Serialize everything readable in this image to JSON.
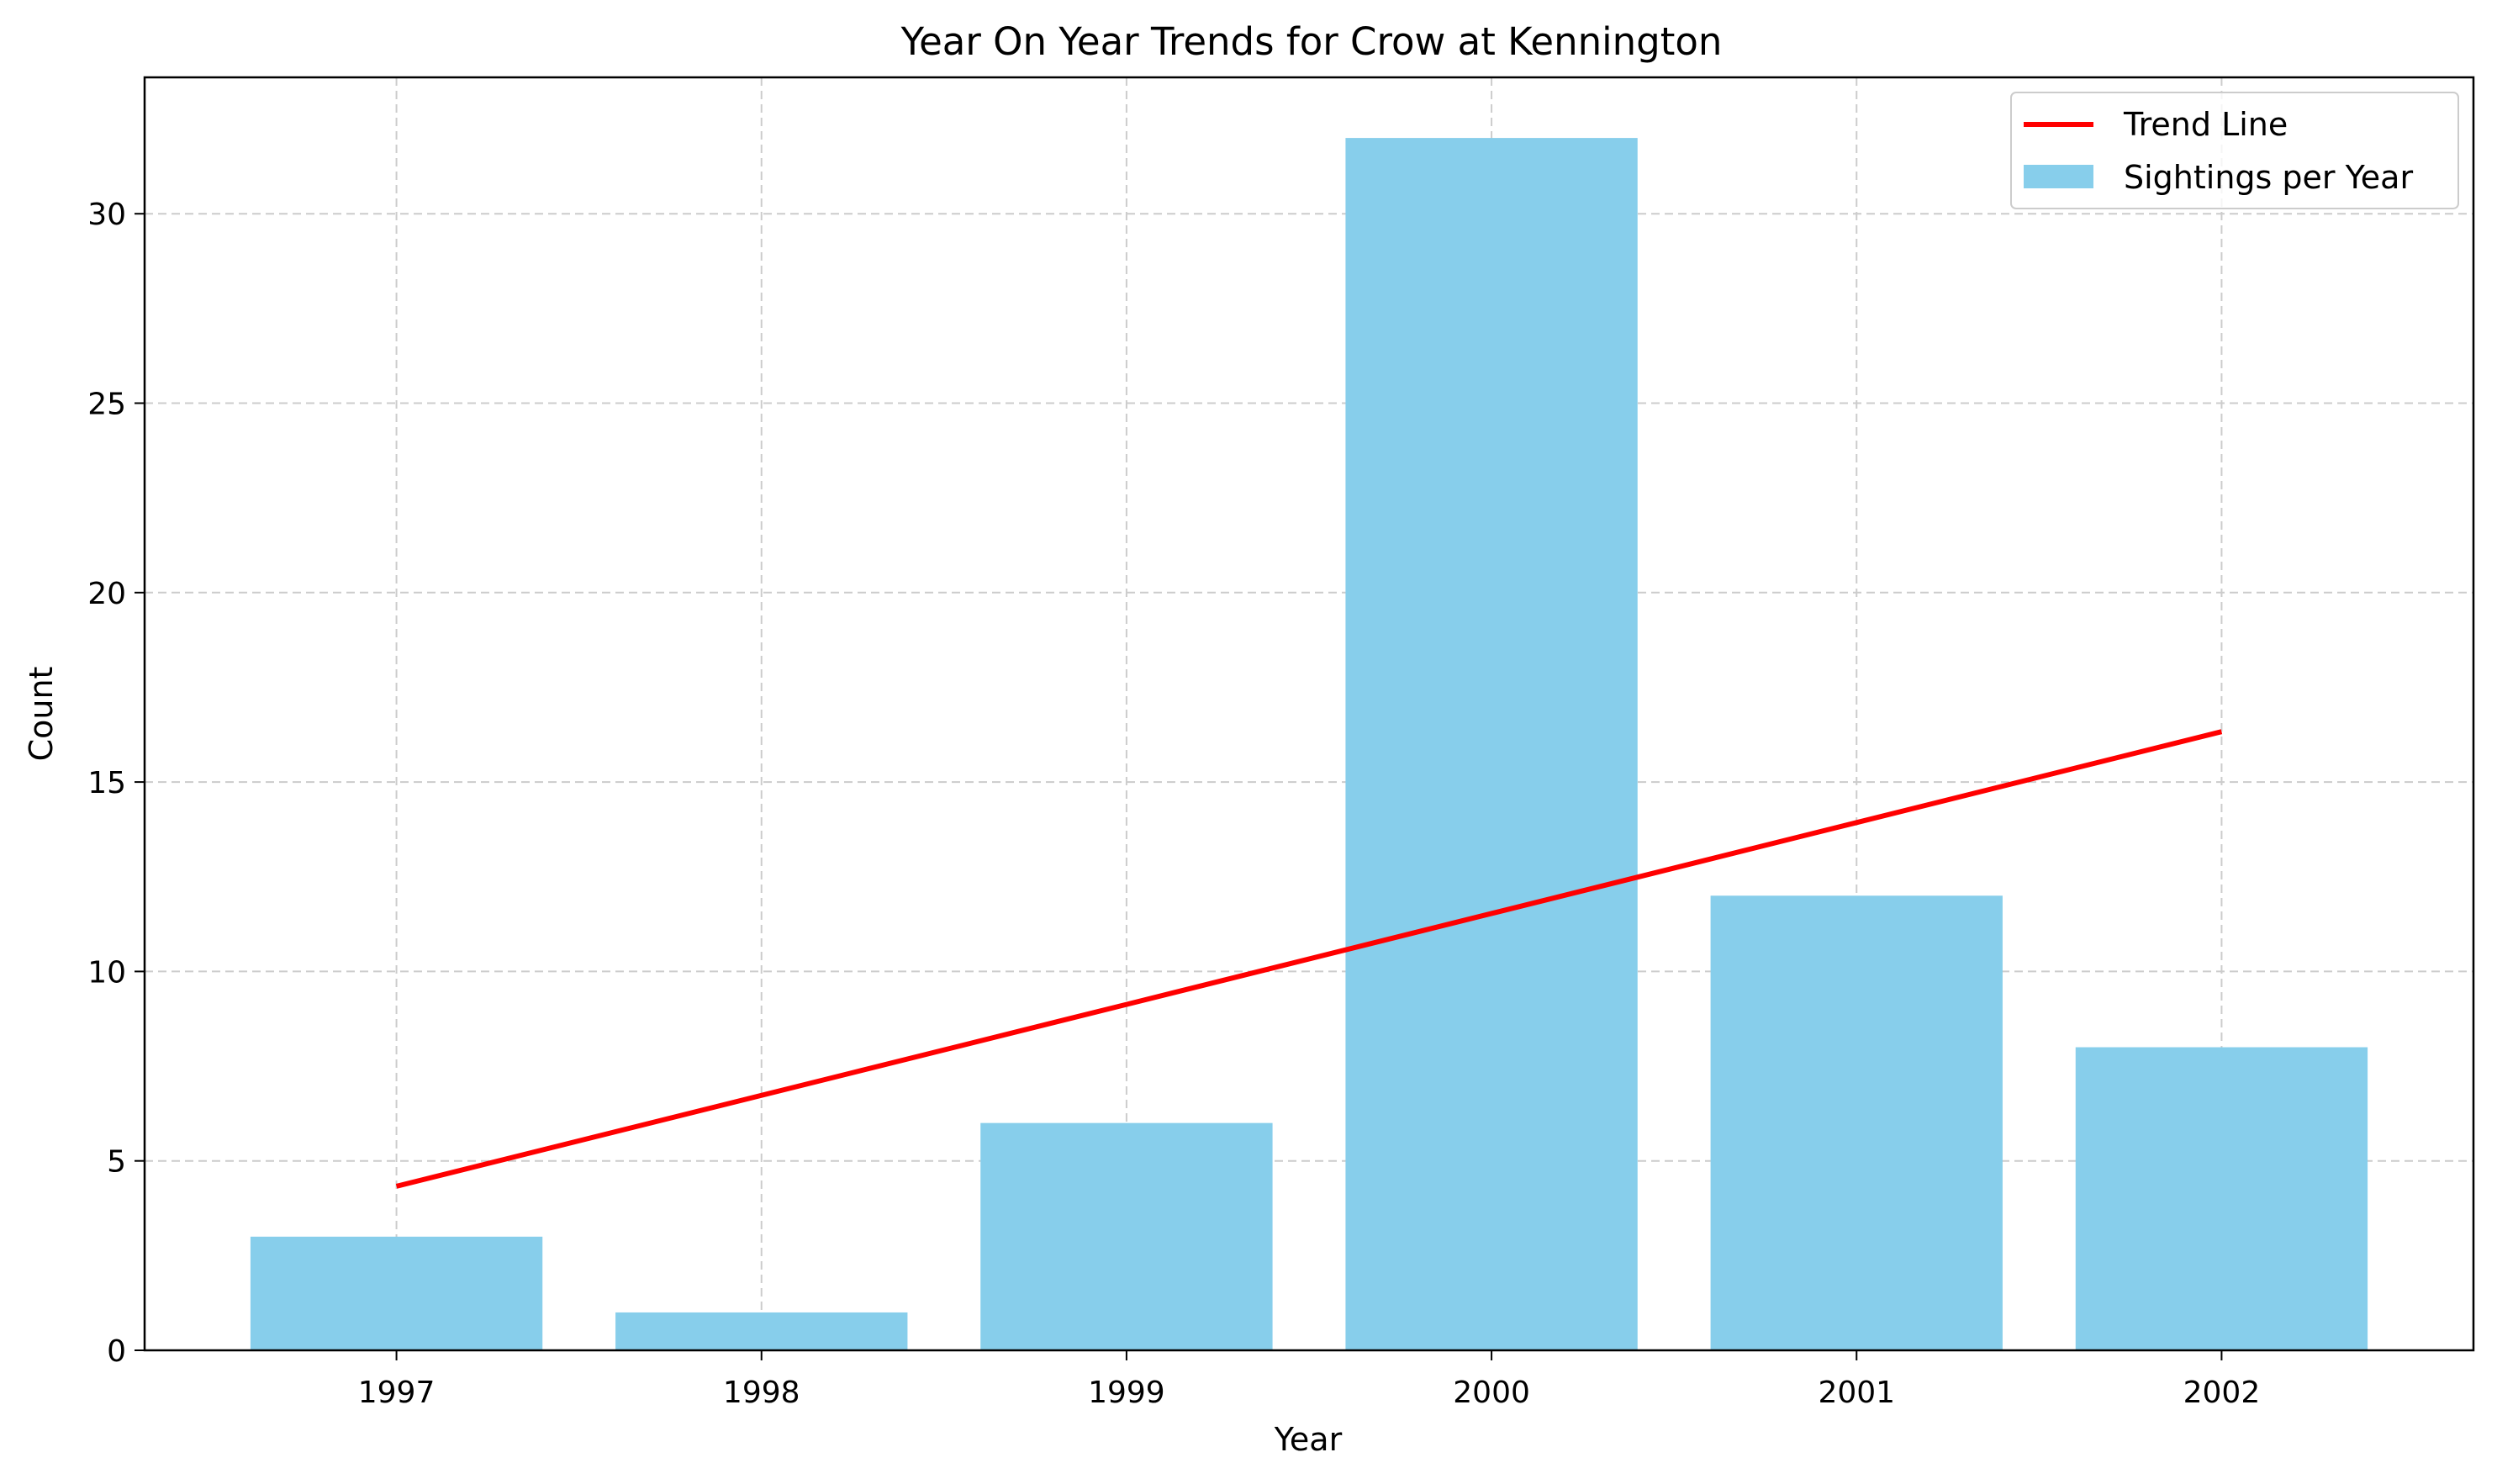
{
  "chart_data": {
    "type": "bar",
    "title": "Year On Year Trends for Crow at Kennington",
    "xlabel": "Year",
    "ylabel": "Count",
    "categories": [
      "1997",
      "1998",
      "1999",
      "2000",
      "2001",
      "2002"
    ],
    "series": [
      {
        "name": "Sightings per Year",
        "type": "bar",
        "values": [
          3,
          1,
          6,
          32,
          12,
          8
        ],
        "color": "#87CEEB"
      },
      {
        "name": "Trend Line",
        "type": "line",
        "values": [
          4.33,
          6.73,
          9.13,
          11.53,
          13.93,
          16.33
        ],
        "color": "#FF0000"
      }
    ],
    "ylim": [
      0,
      33.6
    ],
    "yticks": [
      0,
      5,
      10,
      15,
      20,
      25,
      30
    ],
    "grid": true,
    "legend_position": "top-right"
  }
}
